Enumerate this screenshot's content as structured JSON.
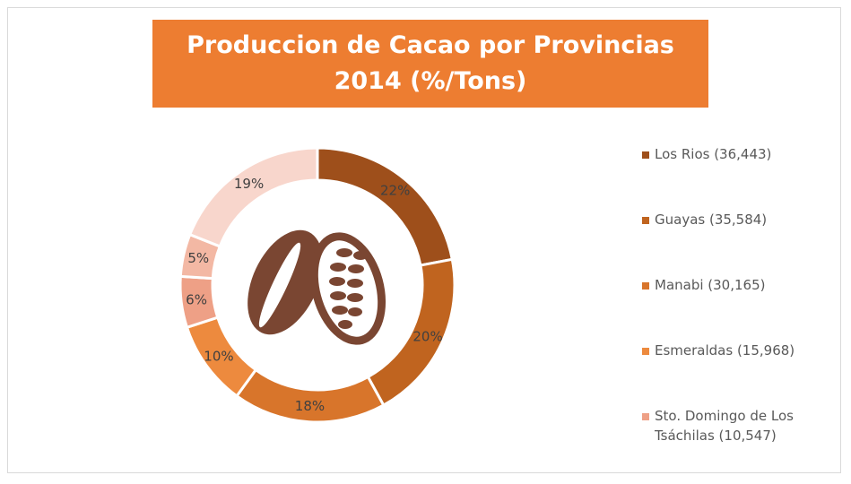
{
  "chart_data": {
    "type": "donut",
    "title": "Produccion de Cacao por Provincias 2014 (%/Tons)",
    "categories": [
      "Los Rios (36,443)",
      "Guayas (35,584)",
      "Manabi (30,165)",
      "Esmeraldas (15,968)",
      "Sto. Domingo de Los Tsáchilas (10,547)",
      null,
      null
    ],
    "values": [
      22,
      20,
      18,
      10,
      6,
      5,
      19
    ],
    "value_labels": [
      "22%",
      "20%",
      "18%",
      "10%",
      "6%",
      "5%",
      "19%"
    ],
    "colors": [
      "#9e4f1b",
      "#c0641f",
      "#d8752b",
      "#ed8a3e",
      "#eea086",
      "#f3b8a4",
      "#f8d6cc"
    ]
  }
}
